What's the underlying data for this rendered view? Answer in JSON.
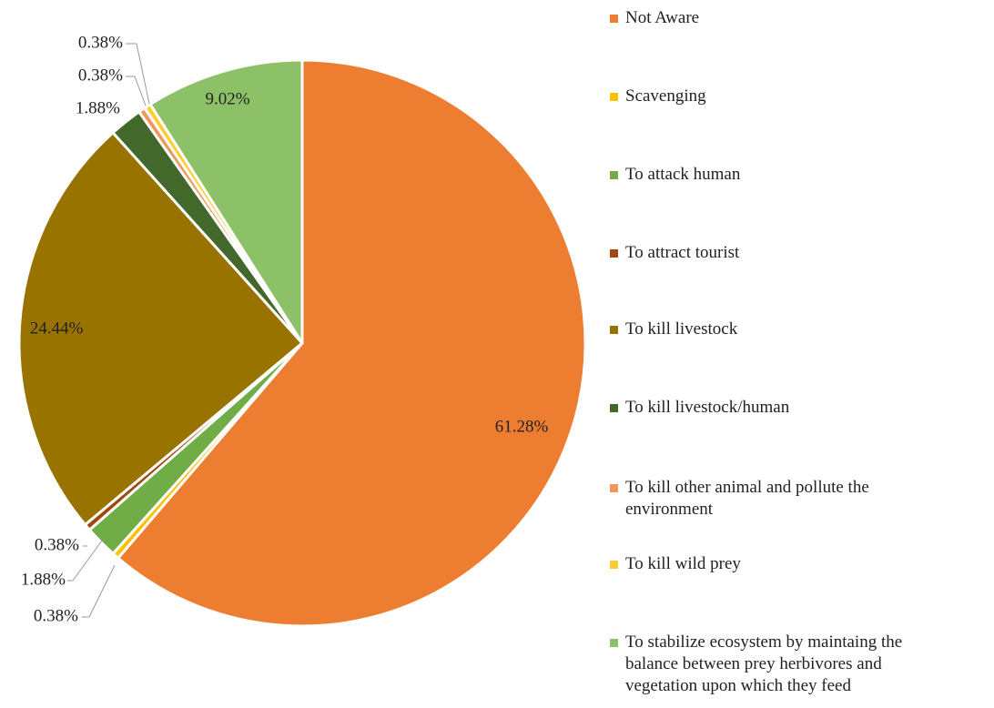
{
  "chart_data": {
    "type": "pie",
    "title": "",
    "slices": [
      {
        "label": "Not Aware",
        "value": 61.28,
        "data_label": "61.28%",
        "color": "#ED7D31"
      },
      {
        "label": "Scavenging",
        "value": 0.38,
        "data_label": "0.38%",
        "color": "#FFC000"
      },
      {
        "label": "To attack human",
        "value": 1.88,
        "data_label": "1.88%",
        "color": "#70AD47"
      },
      {
        "label": "To attract tourist",
        "value": 0.38,
        "data_label": "0.38%",
        "color": "#9E480E"
      },
      {
        "label": "To kill livestock",
        "value": 24.44,
        "data_label": "24.44%",
        "color": "#997300"
      },
      {
        "label": "To kill livestock/human",
        "value": 1.88,
        "data_label": "1.88%",
        "color": "#43682B"
      },
      {
        "label": "To kill other animal and pollute the environment",
        "value": 0.38,
        "data_label": "0.38%",
        "color": "#F1975A"
      },
      {
        "label": "To kill wild prey",
        "value": 0.38,
        "data_label": "0.38%",
        "color": "#FFCD33"
      },
      {
        "label": "To stabilize ecosystem by maintaing the balance between prey herbivores and vegetation upon which they feed",
        "value": 9.02,
        "data_label": "9.02%",
        "color": "#8CC168"
      }
    ],
    "legend_position": "right",
    "start_angle": "12 o'clock",
    "direction": "clockwise"
  },
  "legend": {
    "items": [
      {
        "label": "Not Aware",
        "color": "#ED7D31"
      },
      {
        "label": "Scavenging",
        "color": "#FFC000"
      },
      {
        "label": "To attack human",
        "color": "#70AD47"
      },
      {
        "label": "To attract tourist",
        "color": "#9E480E"
      },
      {
        "label": "To kill livestock",
        "color": "#997300"
      },
      {
        "label": "To kill livestock/human",
        "color": "#43682B"
      },
      {
        "label": "To kill other animal and pollute the environment",
        "color": "#F1975A"
      },
      {
        "label": "To kill wild prey",
        "color": "#FFCD33"
      },
      {
        "label": "To stabilize ecosystem by maintaing the balance between prey herbivores and vegetation upon which they feed",
        "color": "#8CC168"
      }
    ]
  }
}
